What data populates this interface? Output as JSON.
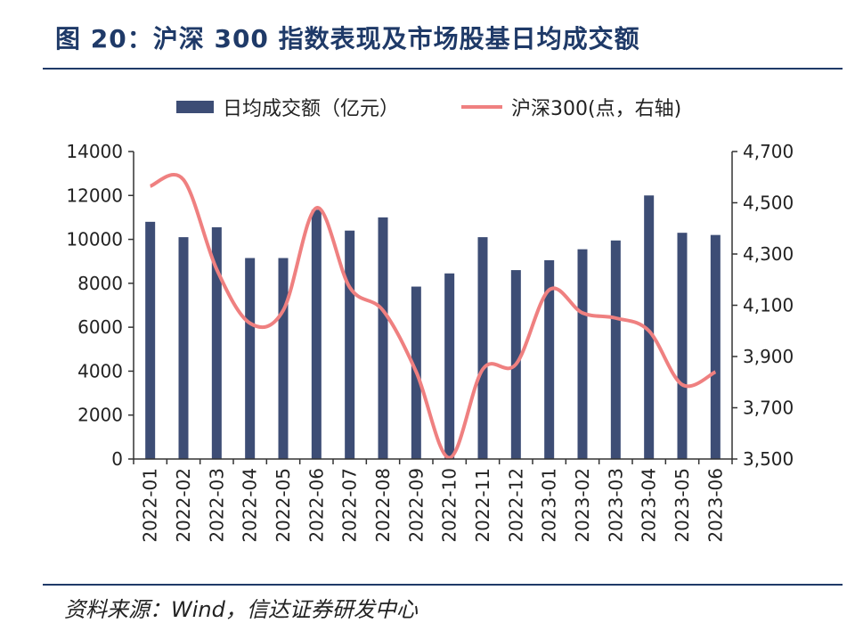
{
  "header": {
    "title": "图 20：沪深 300 指数表现及市场股基日均成交额"
  },
  "footer": {
    "source": "资料来源：Wind，信达证券研发中心"
  },
  "colors": {
    "bar": "#3d4d75",
    "line": "#ef8080",
    "title": "#1f3a68"
  },
  "chart_data": {
    "type": "bar",
    "categories": [
      "2022-01",
      "2022-02",
      "2022-03",
      "2022-04",
      "2022-05",
      "2022-06",
      "2022-07",
      "2022-08",
      "2022-09",
      "2022-10",
      "2022-11",
      "2022-12",
      "2023-01",
      "2023-02",
      "2023-03",
      "2023-04",
      "2023-05",
      "2023-06"
    ],
    "series": [
      {
        "name": "日均成交额（亿元）",
        "type": "bar",
        "axis": "left",
        "values": [
          10800,
          10100,
          10550,
          9150,
          9150,
          11350,
          10400,
          11000,
          7850,
          8450,
          10100,
          8600,
          9050,
          9550,
          9950,
          12000,
          10300,
          10200
        ]
      },
      {
        "name": "沪深300(点，右轴)",
        "type": "line",
        "axis": "right",
        "values": [
          4565,
          4590,
          4240,
          4030,
          4080,
          4480,
          4170,
          4080,
          3840,
          3505,
          3850,
          3870,
          4160,
          4070,
          4050,
          4000,
          3790,
          3840
        ]
      }
    ],
    "y_left": {
      "range": [
        0,
        14000
      ],
      "ticks": [
        "0",
        "2000",
        "4000",
        "6000",
        "8000",
        "10000",
        "12000",
        "14000"
      ]
    },
    "y_right": {
      "range": [
        3500,
        4700
      ],
      "ticks": [
        "3,500",
        "3,700",
        "3,900",
        "4,100",
        "4,300",
        "4,500",
        "4,700"
      ]
    },
    "legend_position": "top",
    "grid": false
  }
}
